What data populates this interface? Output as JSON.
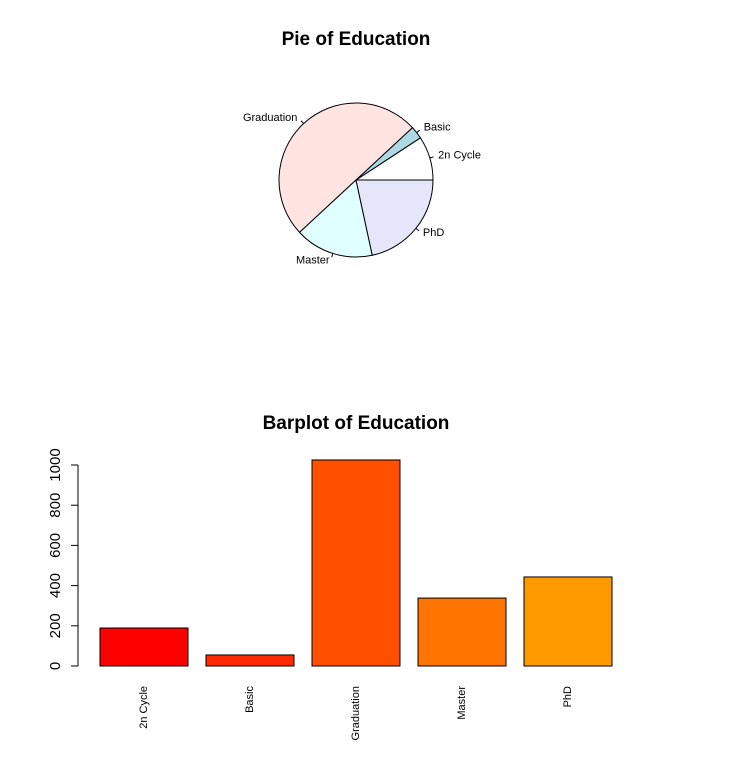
{
  "chart_data": [
    {
      "type": "pie",
      "title": "Pie of Education",
      "categories": [
        "2n Cycle",
        "Basic",
        "Graduation",
        "Master",
        "PhD"
      ],
      "values": [
        189,
        55,
        1025,
        338,
        443
      ],
      "colors": [
        "#ffffff",
        "#add8e6",
        "#ffe4e1",
        "#e0ffff",
        "#e6e6fa"
      ]
    },
    {
      "type": "bar",
      "title": "Barplot of Education",
      "categories": [
        "2n Cycle",
        "Basic",
        "Graduation",
        "Master",
        "PhD"
      ],
      "values": [
        189,
        55,
        1025,
        338,
        443
      ],
      "colors": [
        "#ff0000",
        "#ff2a00",
        "#ff5000",
        "#ff7500",
        "#ff9900"
      ],
      "ylim": [
        0,
        1070
      ],
      "yticks": [
        0,
        200,
        400,
        600,
        800,
        1000
      ]
    }
  ]
}
